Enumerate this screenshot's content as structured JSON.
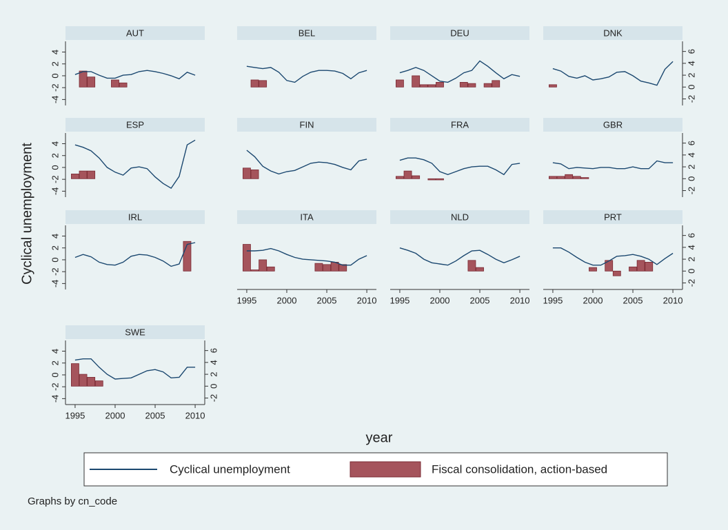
{
  "chart_data": {
    "type": "bar-line",
    "x_label": "year",
    "y_label": "Cyclical unemployment",
    "note": "Graphs by cn_code",
    "x": [
      1995,
      1996,
      1997,
      1998,
      1999,
      2000,
      2001,
      2002,
      2003,
      2004,
      2005,
      2006,
      2007,
      2008,
      2009,
      2010
    ],
    "xlim": [
      1993.8,
      2011.2
    ],
    "xticks": [
      1995,
      2000,
      2005,
      2010
    ],
    "ylim": [
      -5,
      5.8
    ],
    "yticks": [
      -4,
      -2,
      0,
      2,
      4
    ],
    "y2lim": [
      -3.1,
      7.7
    ],
    "y2ticks": [
      -2,
      0,
      2,
      4,
      6
    ],
    "series": [
      {
        "name": "Cyclical unemployment",
        "color": "#1a476f",
        "type": "line"
      },
      {
        "name": "Fiscal consolidation, action-based",
        "color": "#a5545c",
        "type": "bar",
        "axis": "y2"
      }
    ],
    "panels": [
      {
        "title": "AUT",
        "values": [
          [
            0.2,
            0.7,
            0.7,
            0.1,
            -0.4,
            -0.4,
            0.1,
            0.2,
            0.7,
            0.9,
            0.7,
            0.4,
            0,
            -0.5,
            0.6,
            0.1
          ],
          [
            null,
            2.7,
            1.7,
            null,
            null,
            1.2,
            0.7,
            null,
            null,
            null,
            null,
            null,
            null,
            null,
            null,
            null
          ]
        ]
      },
      {
        "title": "BEL",
        "values": [
          [
            1.6,
            1.4,
            1.2,
            1.4,
            0.6,
            -0.8,
            -1.1,
            -0.1,
            0.6,
            0.9,
            0.9,
            0.8,
            0.4,
            -0.5,
            0.5,
            0.9
          ],
          [
            null,
            1.2,
            1.1,
            null,
            null,
            null,
            null,
            null,
            null,
            null,
            null,
            null,
            null,
            null,
            null,
            null
          ]
        ]
      },
      {
        "title": "DEU",
        "values": [
          [
            0.5,
            0.9,
            1.4,
            0.9,
            0,
            -0.9,
            -1.1,
            -0.4,
            0.5,
            0.9,
            2.5,
            1.6,
            0.5,
            -0.5,
            0.2,
            -0.1
          ],
          [
            1.2,
            null,
            1.9,
            0.4,
            0.4,
            0.8,
            null,
            null,
            0.8,
            0.6,
            null,
            0.6,
            1.1,
            null,
            null,
            null
          ]
        ]
      },
      {
        "title": "DNK",
        "values": [
          [
            1.2,
            0.8,
            -0.1,
            -0.4,
            0,
            -0.7,
            -0.5,
            -0.2,
            0.6,
            0.7,
            0,
            -0.9,
            -1.2,
            -1.6,
            1.1,
            2.4
          ],
          [
            0.4,
            null,
            null,
            null,
            null,
            null,
            null,
            null,
            null,
            null,
            null,
            null,
            null,
            null,
            null,
            null
          ]
        ]
      },
      {
        "title": "ESP",
        "values": [
          [
            3.8,
            3.4,
            2.8,
            1.6,
            0,
            -0.8,
            -1.3,
            -0.1,
            0.1,
            -0.2,
            -1.6,
            -2.7,
            -3.5,
            -1.5,
            3.8,
            4.6
          ],
          [
            0.8,
            1.3,
            1.3,
            null,
            null,
            null,
            null,
            null,
            null,
            null,
            null,
            null,
            null,
            null,
            null,
            null
          ]
        ]
      },
      {
        "title": "FIN",
        "values": [
          [
            2.9,
            1.8,
            0.2,
            -0.6,
            -1.1,
            -0.7,
            -0.5,
            0.1,
            0.7,
            0.9,
            0.8,
            0.5,
            0,
            -0.4,
            1.1,
            1.4
          ],
          [
            1.8,
            1.5,
            null,
            null,
            null,
            null,
            null,
            null,
            null,
            null,
            null,
            null,
            null,
            null,
            null,
            null
          ]
        ]
      },
      {
        "title": "FRA",
        "values": [
          [
            1.2,
            1.6,
            1.6,
            1.3,
            0.7,
            -0.7,
            -1.2,
            -0.7,
            -0.2,
            0.1,
            0.2,
            0.2,
            -0.4,
            -1.2,
            0.5,
            0.7
          ],
          [
            0.4,
            1.3,
            0.5,
            null,
            -0.2,
            -0.2,
            null,
            null,
            null,
            null,
            null,
            null,
            null,
            null,
            null,
            null
          ]
        ]
      },
      {
        "title": "GBR",
        "values": [
          [
            0.8,
            0.6,
            -0.2,
            0,
            -0.1,
            -0.2,
            0,
            0,
            -0.2,
            -0.2,
            0.1,
            -0.2,
            -0.2,
            1.1,
            0.8,
            0.8
          ],
          [
            0.4,
            0.4,
            0.7,
            0.4,
            0.2,
            null,
            null,
            null,
            null,
            null,
            null,
            null,
            null,
            null,
            null,
            null
          ]
        ]
      },
      {
        "title": "IRL",
        "values": [
          [
            0.4,
            0.9,
            0.5,
            -0.4,
            -0.8,
            -0.9,
            -0.4,
            0.6,
            0.9,
            0.8,
            0.4,
            -0.2,
            -1.1,
            -0.7,
            2.6,
            2.9
          ],
          [
            null,
            null,
            null,
            null,
            null,
            null,
            null,
            null,
            null,
            null,
            null,
            null,
            null,
            null,
            5.0,
            null
          ]
        ]
      },
      {
        "title": "ITA",
        "values": [
          [
            1.5,
            1.5,
            1.6,
            1.9,
            1.5,
            0.9,
            0.4,
            0.1,
            0,
            -0.1,
            -0.2,
            -0.4,
            -0.9,
            -0.9,
            0.1,
            0.7
          ],
          [
            4.5,
            0.2,
            1.9,
            0.7,
            null,
            null,
            null,
            null,
            null,
            1.3,
            1.1,
            1.5,
            1.1,
            null,
            null,
            null
          ]
        ]
      },
      {
        "title": "NLD",
        "values": [
          [
            2,
            1.6,
            1.1,
            0.1,
            -0.5,
            -0.7,
            -0.9,
            -0.2,
            0.7,
            1.5,
            1.6,
            0.9,
            0.1,
            -0.5,
            0,
            0.6
          ],
          [
            null,
            null,
            null,
            null,
            null,
            null,
            null,
            null,
            null,
            1.8,
            0.6,
            null,
            null,
            null,
            null,
            null
          ]
        ]
      },
      {
        "title": "PRT",
        "values": [
          [
            2,
            2,
            1.3,
            0.4,
            -0.4,
            -0.9,
            -0.9,
            -0.2,
            0.6,
            0.7,
            0.9,
            0.6,
            0.1,
            -0.8,
            0.2,
            1.1
          ],
          [
            null,
            null,
            null,
            null,
            null,
            0.6,
            null,
            1.8,
            -0.8,
            null,
            0.7,
            1.8,
            1.5,
            null,
            null,
            null
          ]
        ]
      },
      {
        "title": "SWE",
        "values": [
          [
            2.5,
            2.7,
            2.7,
            1.3,
            0.1,
            -0.7,
            -0.6,
            -0.5,
            0.1,
            0.7,
            0.9,
            0.5,
            -0.5,
            -0.4,
            1.3,
            1.3
          ],
          [
            3.8,
            2.0,
            1.5,
            0.9,
            null,
            null,
            null,
            null,
            null,
            null,
            null,
            null,
            null,
            null,
            null,
            null
          ]
        ]
      }
    ]
  }
}
